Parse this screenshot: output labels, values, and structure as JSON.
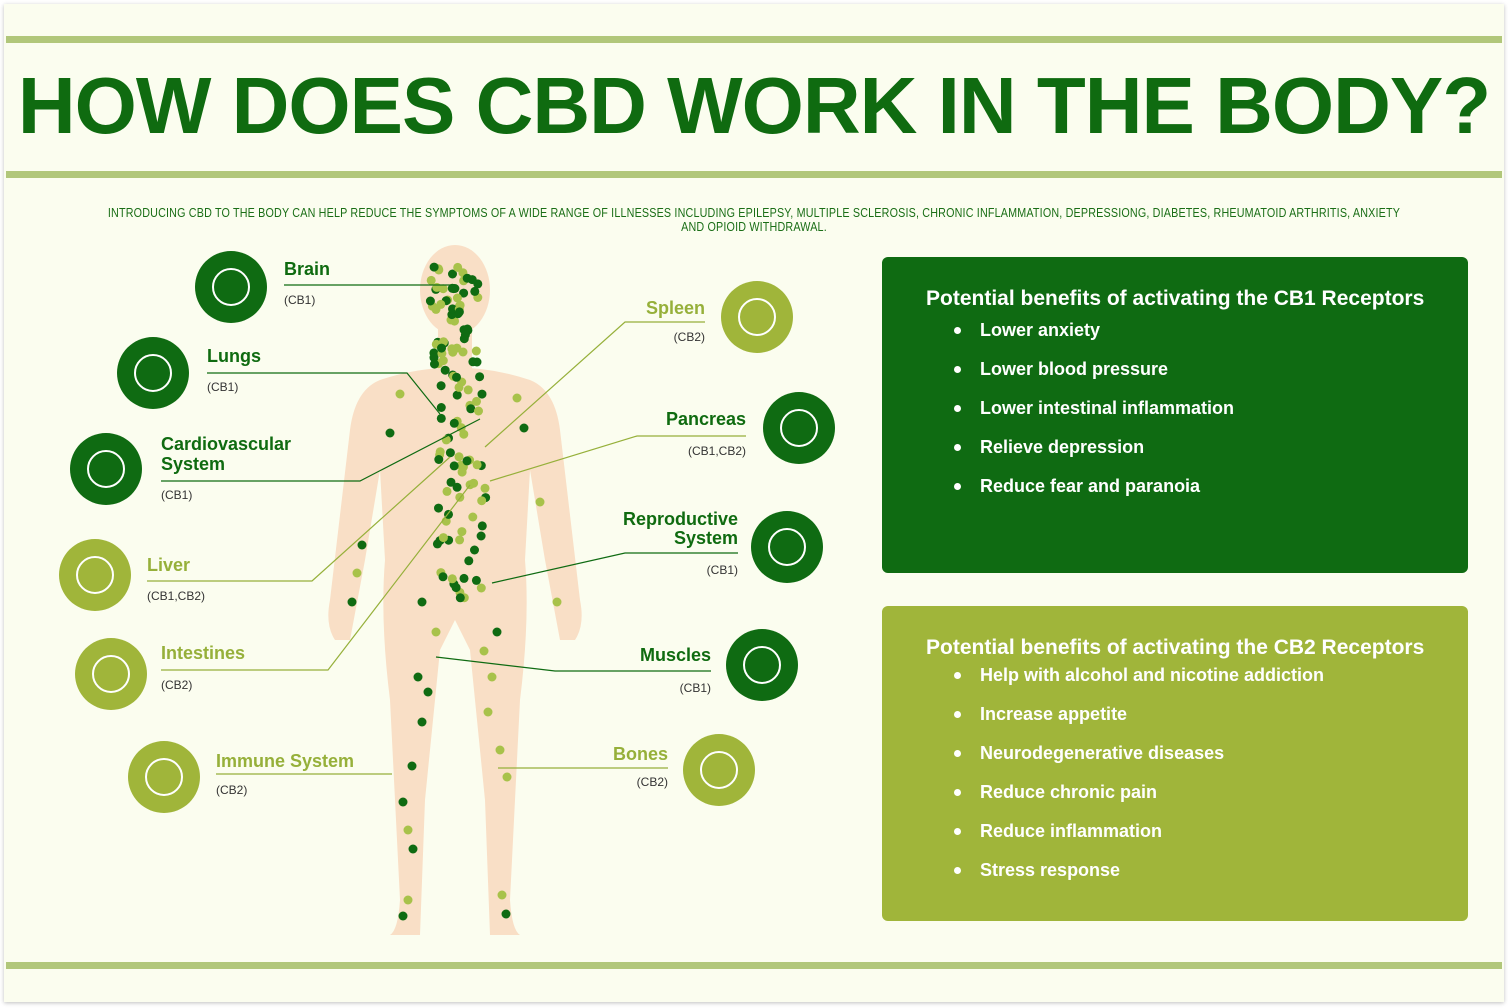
{
  "title": "HOW DOES CBD WORK IN THE BODY?",
  "subtitle": "INTRODUCING CBD TO THE BODY CAN HELP REDUCE THE SYMPTOMS OF A WIDE RANGE OF ILLNESSES INCLUDING EPILEPSY, MULTIPLE SCLEROSIS, CHRONIC INFLAMMATION, DEPRESSIONG, DIABETES, RHEUMATOID ARTHRITIS, ANXIETY AND OPIOID WITHDRAWAL.",
  "colors": {
    "dark_green": "#0f6b12",
    "light_green": "#a0b53a",
    "skin": "#f9dfc6",
    "background": "#fbfdef"
  },
  "organs": {
    "brain": {
      "name": "Brain",
      "receptors": "(CB1)",
      "icon": "brain-icon"
    },
    "lungs": {
      "name": "Lungs",
      "receptors": "(CB1)",
      "icon": "lungs-icon"
    },
    "cardio": {
      "name1": "Cardiovascular",
      "name2": "System",
      "receptors": "(CB1)",
      "icon": "heart-icon"
    },
    "liver": {
      "name": "Liver",
      "receptors": "(CB1,CB2)",
      "icon": "liver-icon"
    },
    "intestines": {
      "name": "Intestines",
      "receptors": "(CB2)",
      "icon": "intestines-icon"
    },
    "immune": {
      "name": "Immune System",
      "receptors": "(CB2)",
      "icon": "cells-icon"
    },
    "spleen": {
      "name": "Spleen",
      "receptors": "(CB2)",
      "icon": "spleen-icon"
    },
    "pancreas": {
      "name": "Pancreas",
      "receptors": "(CB1,CB2)",
      "icon": "pancreas-icon"
    },
    "repro": {
      "name1": "Reproductive",
      "name2": "System",
      "receptors": "(CB1)",
      "icon": "reproductive-icon"
    },
    "muscles": {
      "name": "Muscles",
      "receptors": "(CB1)",
      "icon": "muscle-icon"
    },
    "bones": {
      "name": "Bones",
      "receptors": "(CB2)",
      "icon": "bone-icon"
    }
  },
  "cb1": {
    "heading": "Potential benefits of activating the CB1 Receptors",
    "items": [
      "Lower anxiety",
      "Lower blood pressure",
      "Lower intestinal inflammation",
      "Relieve depression",
      "Reduce fear and paranoia"
    ]
  },
  "cb2": {
    "heading": "Potential benefits of activating the CB2 Receptors",
    "items": [
      "Help with alcohol and nicotine addiction",
      "Increase appetite",
      "Neurodegenerative diseases",
      "Reduce chronic pain",
      "Reduce inflammation",
      "Stress response"
    ]
  }
}
